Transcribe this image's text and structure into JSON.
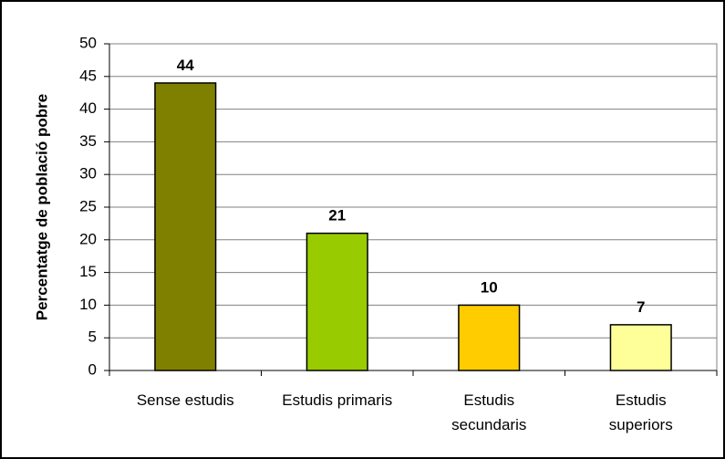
{
  "chart_data": {
    "type": "bar",
    "title": "",
    "xlabel": "",
    "ylabel": "Percentatge de població pobre",
    "categories": [
      [
        "Sense estudis"
      ],
      [
        "Estudis primaris"
      ],
      [
        "Estudis",
        "secundaris"
      ],
      [
        "Estudis",
        "superiors"
      ]
    ],
    "values": [
      44,
      21,
      10,
      7
    ],
    "data_labels": [
      "44",
      "21",
      "10",
      "7"
    ],
    "colors": [
      "#808000",
      "#99CC00",
      "#FFCC00",
      "#FFFF99"
    ],
    "ylim": [
      0,
      50
    ],
    "yticks": [
      0,
      5,
      10,
      15,
      20,
      25,
      30,
      35,
      40,
      45,
      50
    ],
    "grid": true,
    "legend": "none"
  }
}
